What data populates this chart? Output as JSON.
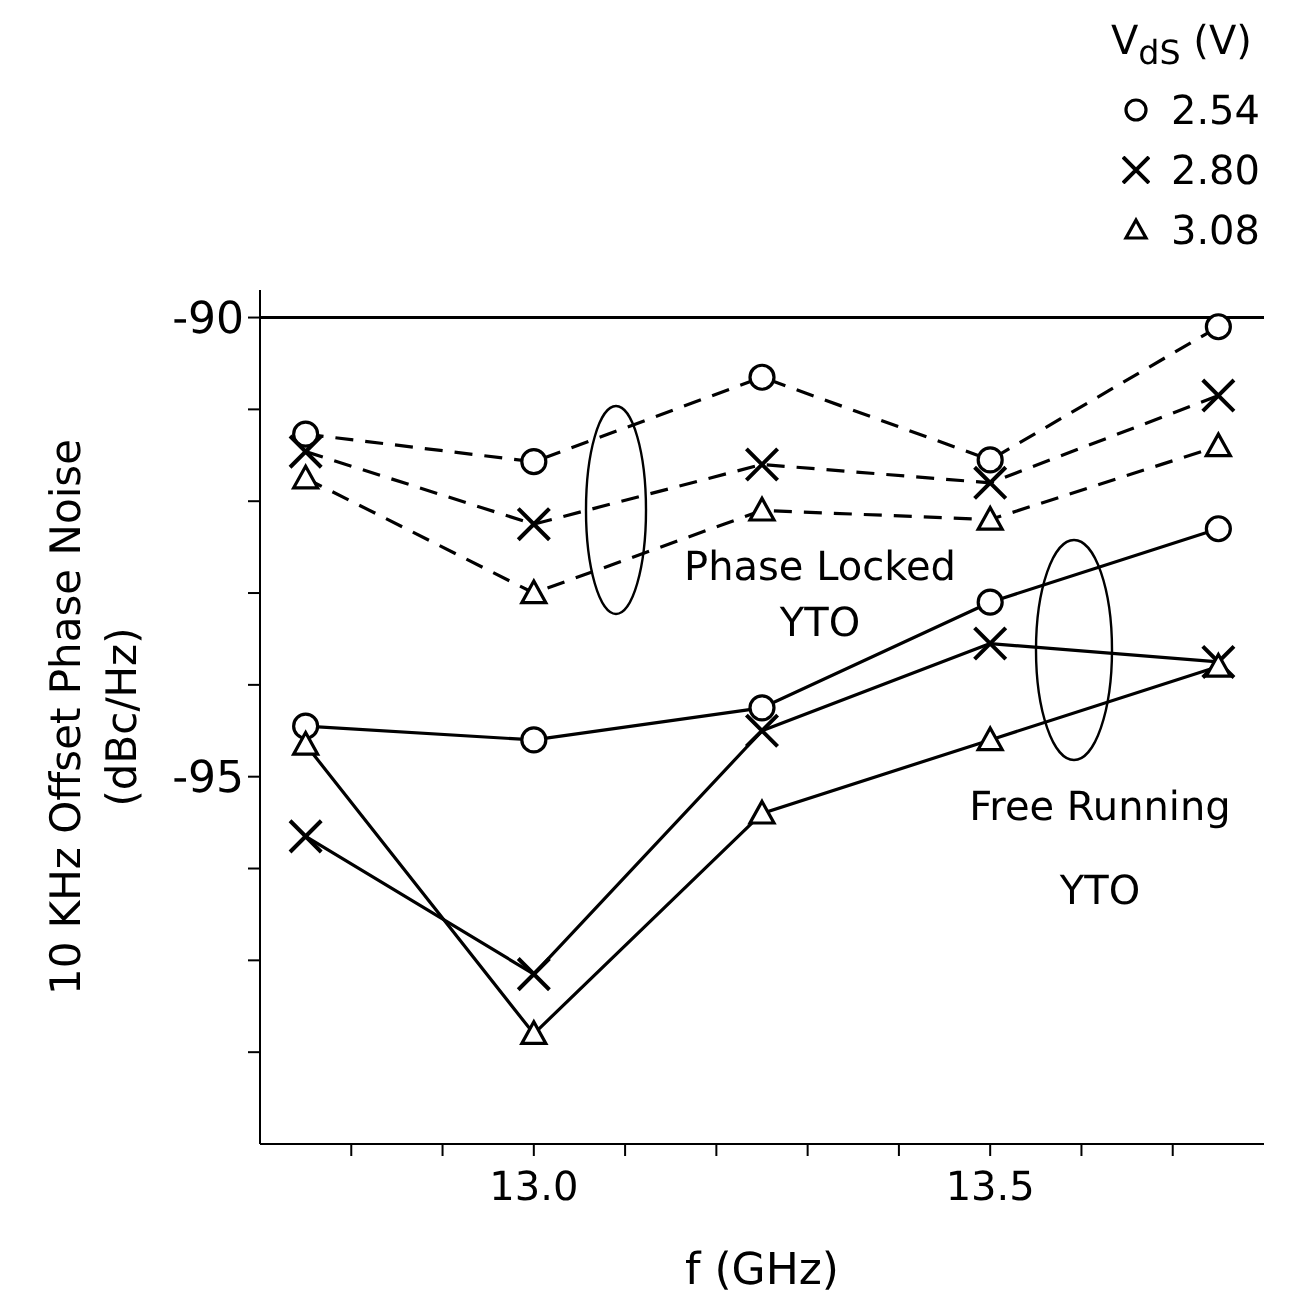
{
  "chart_data": {
    "type": "line",
    "xlabel": "f   (GHz)",
    "ylabel": "10 KHz Offset Phase Noise\n(dBc/Hz)",
    "legend_title": "V$_{dS}$ (V)",
    "legend": "top right",
    "grid": false,
    "x": [
      12.75,
      13.0,
      13.25,
      13.5,
      13.75
    ],
    "xlim": [
      12.7,
      13.8
    ],
    "xticks": [
      {
        "value": 12.8,
        "label": null
      },
      {
        "value": 12.9,
        "label": null
      },
      {
        "value": 13.0,
        "label": "13.0"
      },
      {
        "value": 13.1,
        "label": null
      },
      {
        "value": 13.2,
        "label": null
      },
      {
        "value": 13.3,
        "label": null
      },
      {
        "value": 13.4,
        "label": null
      },
      {
        "value": 13.5,
        "label": "13.5"
      },
      {
        "value": 13.6,
        "label": null
      },
      {
        "value": 13.7,
        "label": null
      }
    ],
    "ylim": [
      -99,
      -89.7
    ],
    "yticks": [
      -90,
      {
        "value": -91,
        "label": null
      },
      {
        "value": -92,
        "label": null
      },
      {
        "value": -93,
        "label": null
      },
      {
        "value": -94,
        "label": null
      },
      -95,
      {
        "value": -96,
        "label": null
      },
      {
        "value": -97,
        "label": null
      },
      {
        "value": -98,
        "label": null
      }
    ],
    "ref_lines": [
      {
        "axis": "y",
        "value": -90,
        "color": "#000000"
      }
    ],
    "annotations": [
      "Phase Locked\nYTO",
      "Free Running\nYTO"
    ],
    "series": [
      {
        "name": "2.54",
        "color": "#000000",
        "marker": "circle",
        "line_style": "dashed",
        "values": [
          -91.27,
          -91.57,
          -90.65,
          -91.55,
          -90.1
        ]
      },
      {
        "name": "2.80",
        "color": "#000000",
        "marker": "cross",
        "line_style": "dashed",
        "values": [
          -91.46,
          -92.25,
          -91.6,
          -91.8,
          -90.85
        ]
      },
      {
        "name": "3.08",
        "color": "#000000",
        "marker": "triangle",
        "line_style": "dashed",
        "values": [
          -91.75,
          -93.0,
          -92.1,
          -92.2,
          -91.4
        ]
      },
      {
        "color": "#000000",
        "marker": "circle",
        "line_style": "solid",
        "values": [
          -94.45,
          -94.6,
          -94.25,
          -93.1,
          -92.3
        ]
      },
      {
        "color": "#000000",
        "marker": "cross",
        "line_style": "solid",
        "values": [
          -95.65,
          -97.15,
          -94.5,
          -93.55,
          -93.75
        ]
      },
      {
        "color": "#000000",
        "marker": "triangle",
        "line_style": "solid",
        "values": [
          -94.65,
          -97.8,
          -95.4,
          -94.6,
          -93.8
        ]
      }
    ]
  }
}
